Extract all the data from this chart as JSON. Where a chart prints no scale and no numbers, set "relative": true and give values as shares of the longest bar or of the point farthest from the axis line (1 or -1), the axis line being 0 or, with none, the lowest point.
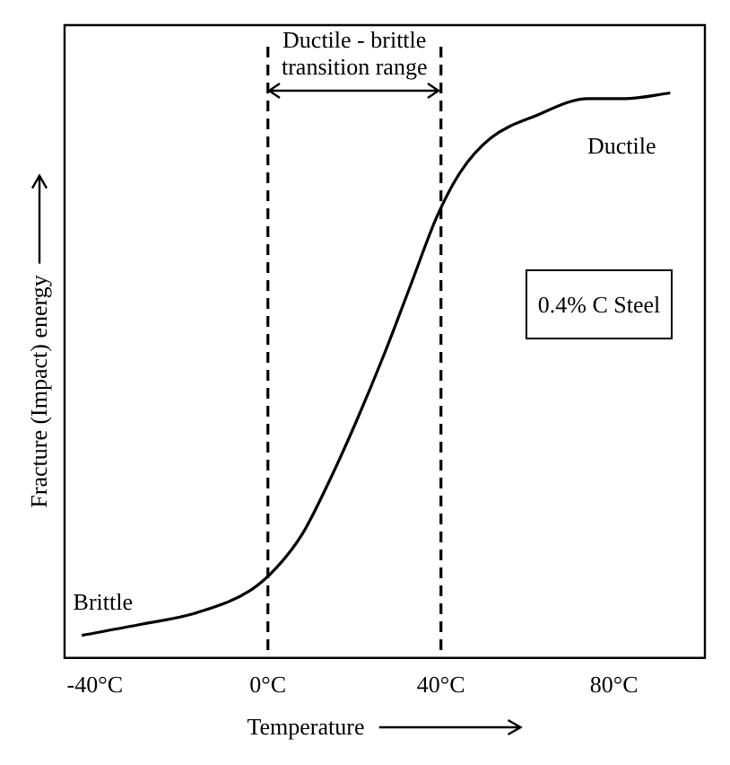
{
  "chart_data": {
    "type": "line",
    "xlabel": "Temperature",
    "ylabel": "Fracture (Impact) energy",
    "relative": true,
    "x": [
      -43,
      -29,
      -16.5,
      -4,
      2,
      8,
      14,
      20.5,
      27,
      33,
      39,
      44.5,
      51.5,
      62,
      74,
      82.5,
      93
    ],
    "series": [
      {
        "color": "#000000",
        "values": [
          0.04,
          0.06,
          0.08,
          0.12,
          0.16,
          0.22,
          0.31,
          0.42,
          0.54,
          0.66,
          0.78,
          0.86,
          0.92,
          0.96,
          0.99,
          0.99,
          1.0
        ]
      }
    ],
    "xlim": [
      -47,
      101
    ],
    "xticks": [
      {
        "value": -40,
        "label": "-40°C"
      },
      {
        "value": 0,
        "label": "0°C"
      },
      {
        "value": 40,
        "label": "40°C"
      },
      {
        "value": 80,
        "label": "80°C"
      }
    ],
    "ref_lines": [
      {
        "axis": "x",
        "value": 0,
        "color": "#000000",
        "line_style": "dashed"
      },
      {
        "axis": "x",
        "value": 40,
        "color": "#000000",
        "line_style": "dashed"
      }
    ],
    "annotations": [
      "Ductile - brittle transition range",
      "Ductile",
      "Brittle",
      "0.4% C Steel"
    ],
    "marker": "none",
    "line_style": "solid",
    "grid": false,
    "legend": false
  }
}
